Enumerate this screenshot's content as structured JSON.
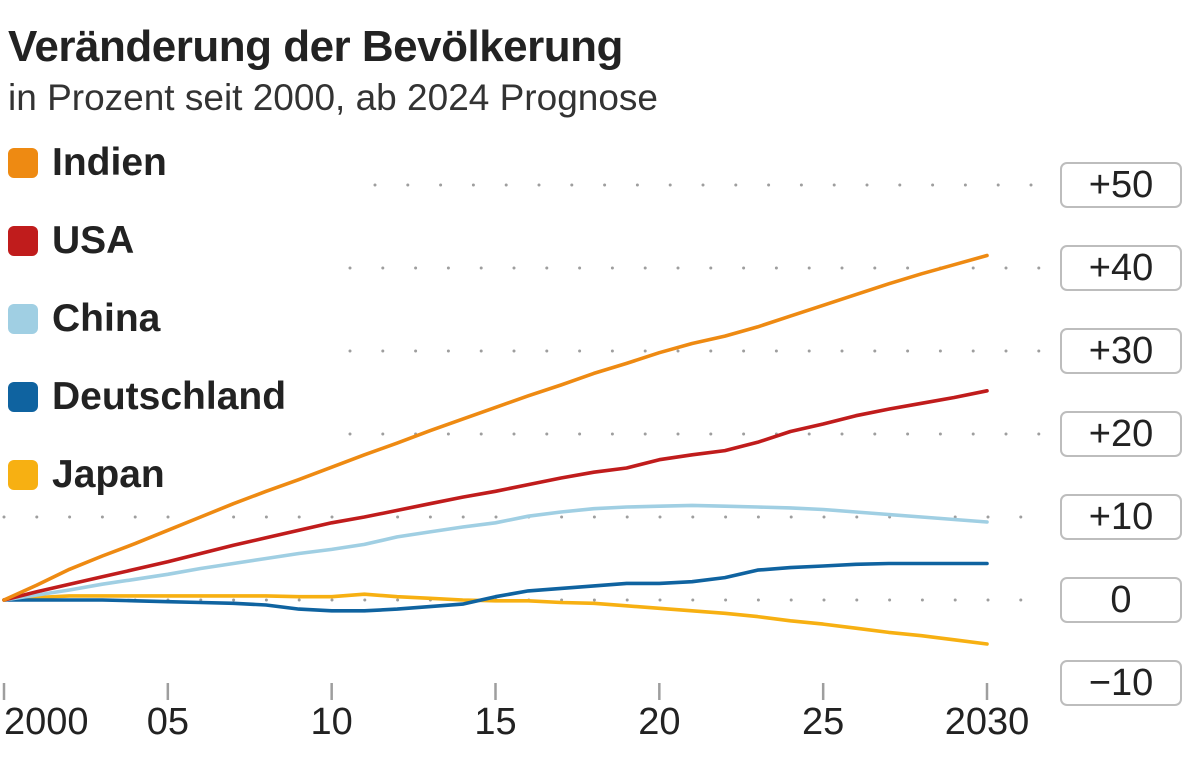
{
  "chart_data": {
    "type": "line",
    "title": "Veränderung der Bevölkerung",
    "subtitle": "in Prozent seit 2000, ab 2024 Prognose",
    "xlabel": "",
    "ylabel": "",
    "x": [
      2000,
      2001,
      2002,
      2003,
      2004,
      2005,
      2006,
      2007,
      2008,
      2009,
      2010,
      2011,
      2012,
      2013,
      2014,
      2015,
      2016,
      2017,
      2018,
      2019,
      2020,
      2021,
      2022,
      2023,
      2024,
      2025,
      2026,
      2027,
      2028,
      2029,
      2030
    ],
    "x_ticks": [
      2000,
      2005,
      2010,
      2015,
      2020,
      2025,
      2030
    ],
    "x_tick_labels": [
      "2000",
      "05",
      "10",
      "15",
      "20",
      "25",
      "2030"
    ],
    "xlim": [
      2000,
      2030
    ],
    "ylim": [
      -10,
      50
    ],
    "y_ticks": [
      50,
      40,
      30,
      20,
      10,
      0,
      -10
    ],
    "y_tick_labels": [
      "+50",
      "+40",
      "+30",
      "+20",
      "+10",
      "0",
      "−10"
    ],
    "grid": "dotted horizontal",
    "legend_position": "top-left",
    "series": [
      {
        "name": "Indien",
        "color": "#ee8a12",
        "values": [
          0,
          1.8,
          3.7,
          5.3,
          6.8,
          8.4,
          10.0,
          11.6,
          13.1,
          14.5,
          16.0,
          17.5,
          18.9,
          20.4,
          21.8,
          23.2,
          24.6,
          25.9,
          27.3,
          28.5,
          29.8,
          30.9,
          31.8,
          32.9,
          34.2,
          35.5,
          36.8,
          38.1,
          39.3,
          40.4,
          41.5
        ]
      },
      {
        "name": "USA",
        "color": "#c01c1c",
        "values": [
          0,
          1.0,
          1.9,
          2.8,
          3.7,
          4.6,
          5.6,
          6.6,
          7.5,
          8.4,
          9.3,
          10.0,
          10.8,
          11.6,
          12.4,
          13.1,
          13.9,
          14.7,
          15.4,
          15.9,
          16.9,
          17.5,
          18.0,
          19.0,
          20.3,
          21.2,
          22.2,
          23.0,
          23.7,
          24.4,
          25.2
        ]
      },
      {
        "name": "China",
        "color": "#a0cfe3",
        "values": [
          0,
          0.6,
          1.2,
          1.9,
          2.5,
          3.1,
          3.8,
          4.4,
          5.0,
          5.6,
          6.1,
          6.7,
          7.6,
          8.2,
          8.8,
          9.3,
          10.1,
          10.6,
          11.0,
          11.2,
          11.3,
          11.4,
          11.3,
          11.2,
          11.1,
          10.9,
          10.6,
          10.3,
          10.0,
          9.7,
          9.4
        ]
      },
      {
        "name": "Deutschland",
        "color": "#0f63a0",
        "values": [
          0,
          0.0,
          0.0,
          0.0,
          -0.1,
          -0.2,
          -0.3,
          -0.4,
          -0.6,
          -1.1,
          -1.3,
          -1.3,
          -1.1,
          -0.8,
          -0.5,
          0.4,
          1.1,
          1.4,
          1.7,
          2.0,
          2.0,
          2.2,
          2.7,
          3.6,
          3.9,
          4.1,
          4.3,
          4.4,
          4.4,
          4.4,
          4.4
        ]
      },
      {
        "name": "Japan",
        "color": "#f7b012",
        "values": [
          0,
          0.3,
          0.5,
          0.5,
          0.5,
          0.5,
          0.5,
          0.5,
          0.5,
          0.4,
          0.4,
          0.7,
          0.4,
          0.2,
          0.0,
          -0.1,
          -0.1,
          -0.3,
          -0.4,
          -0.7,
          -1.0,
          -1.3,
          -1.6,
          -2.0,
          -2.5,
          -2.9,
          -3.4,
          -3.9,
          -4.3,
          -4.8,
          -5.3
        ]
      }
    ]
  }
}
